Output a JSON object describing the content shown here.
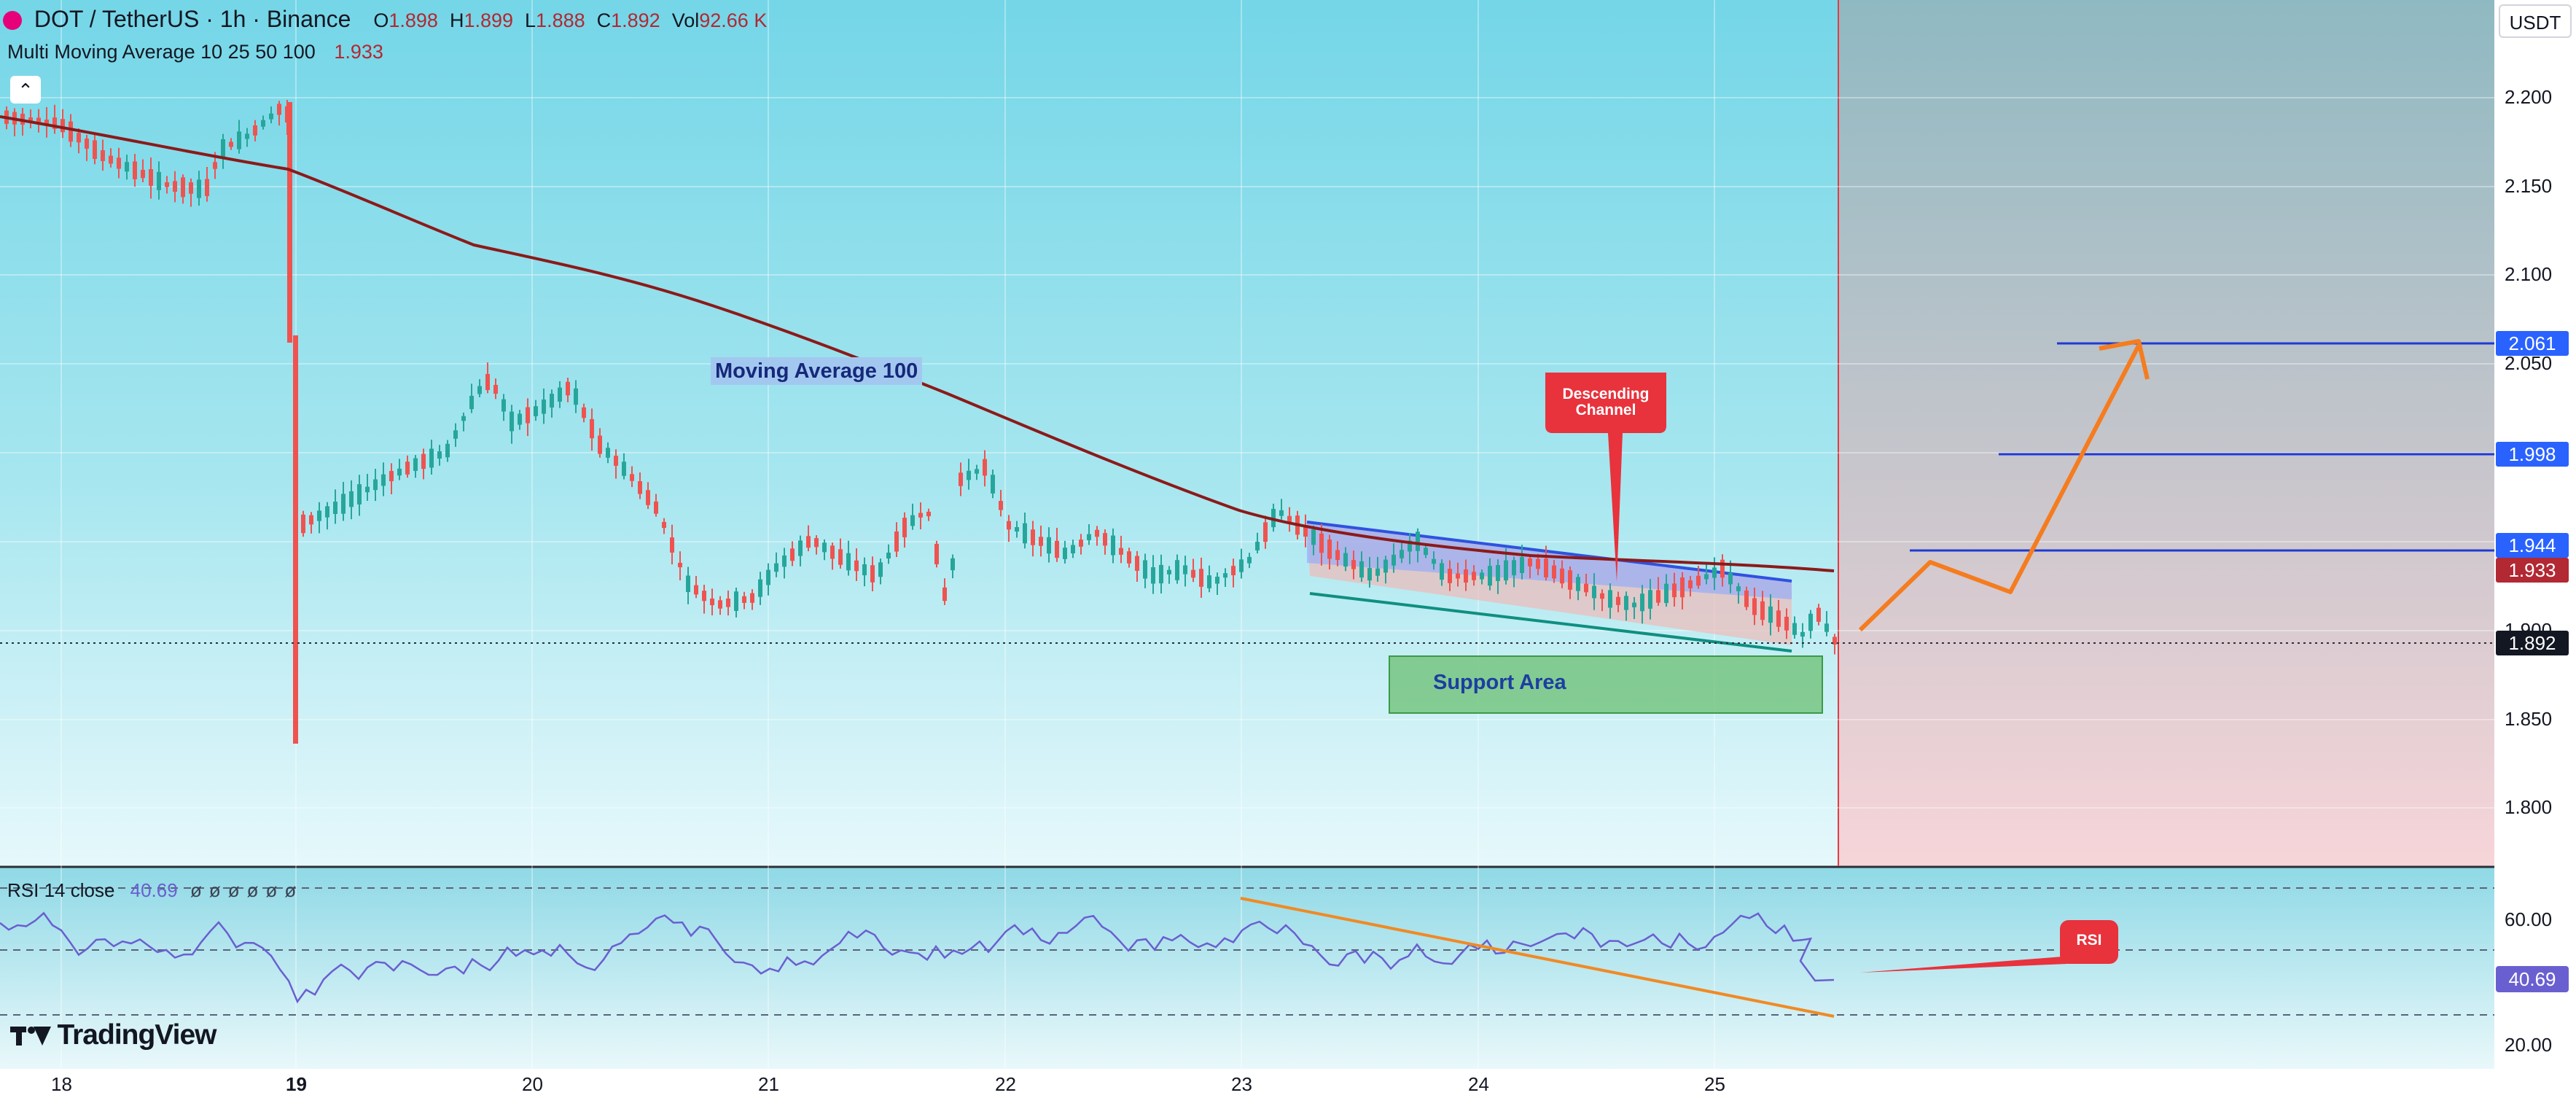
{
  "header": {
    "symbol": "DOT / TetherUS · 1h · Binance",
    "ohlc": [
      {
        "key": "O",
        "value": "1.898"
      },
      {
        "key": "H",
        "value": "1.899"
      },
      {
        "key": "L",
        "value": "1.888"
      },
      {
        "key": "C",
        "value": "1.892"
      }
    ],
    "vol_label": "Vol",
    "vol_value": "92.66 K",
    "indicator_name": "Multi Moving Average 10 25 50 100",
    "indicator_value": "1.933"
  },
  "currency_button": "USDT",
  "price_axis": {
    "ticks": [
      "2.200",
      "2.150",
      "2.100",
      "2.050",
      "1.900",
      "1.850",
      "1.800"
    ],
    "badges": [
      {
        "text": "2.061",
        "color": "#2962ff"
      },
      {
        "text": "1.998",
        "color": "#2962ff"
      },
      {
        "text": "1.944",
        "color": "#2962ff"
      },
      {
        "text": "1.933",
        "color": "#b22833"
      },
      {
        "text": "1.892",
        "color": "#131722"
      }
    ]
  },
  "annotations": {
    "moving_average": "Moving Average 100",
    "descending_channel": "Descending Channel",
    "support_area": "Support Area",
    "rsi_callout": "RSI"
  },
  "rsi": {
    "label": "RSI 14 close",
    "value": "40.69",
    "ticks": [
      "60.00",
      "20.00"
    ],
    "badge": "40.69"
  },
  "time_axis": {
    "labels": [
      "18",
      "19",
      "20",
      "21",
      "22",
      "23",
      "24",
      "25"
    ]
  },
  "logo": "TradingView",
  "colors": {
    "ma_line": "#8b1a1a",
    "up_candle": "#26a69a",
    "down_candle": "#ef5350",
    "projection": "#f57c1f",
    "level_line": "#1e3ad4",
    "red_callout": "#e8323c"
  },
  "icons": [
    "collapse-chevron-icon",
    "visibility-icons"
  ]
}
